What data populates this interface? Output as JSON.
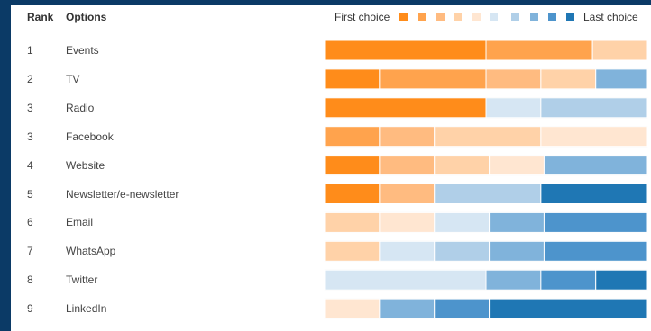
{
  "headers": {
    "rank": "Rank",
    "options": "Options"
  },
  "legend": {
    "first": "First choice",
    "last": "Last choice",
    "colors": [
      "#ff8c1a",
      "#ffa34d",
      "#ffbb80",
      "#ffd2a8",
      "#ffe6d1",
      "#d6e6f3",
      "#b0cfe8",
      "#80b3db",
      "#4d94cc",
      "#1f77b4"
    ]
  },
  "chart_data": {
    "type": "bar",
    "stacked": true,
    "normalized": true,
    "categories": [
      "Events",
      "TV",
      "Radio",
      "Facebook",
      "Website",
      "Newsletter/e-newsletter",
      "Email",
      "WhatsApp",
      "Twitter",
      "LinkedIn"
    ],
    "ranks": [
      "1",
      "2",
      "3",
      "3",
      "4",
      "5",
      "6",
      "7",
      "8",
      "9"
    ],
    "xlim": [
      0,
      1
    ],
    "rows": [
      [
        {
          "rank": 1,
          "value": 0.5
        },
        {
          "rank": 2,
          "value": 0.33
        },
        {
          "rank": 4,
          "value": 0.17
        }
      ],
      [
        {
          "rank": 1,
          "value": 0.17
        },
        {
          "rank": 2,
          "value": 0.33
        },
        {
          "rank": 3,
          "value": 0.17
        },
        {
          "rank": 4,
          "value": 0.17
        },
        {
          "rank": 8,
          "value": 0.16
        }
      ],
      [
        {
          "rank": 1,
          "value": 0.5
        },
        {
          "rank": 6,
          "value": 0.17
        },
        {
          "rank": 7,
          "value": 0.33
        }
      ],
      [
        {
          "rank": 2,
          "value": 0.17
        },
        {
          "rank": 3,
          "value": 0.17
        },
        {
          "rank": 4,
          "value": 0.33
        },
        {
          "rank": 5,
          "value": 0.33
        }
      ],
      [
        {
          "rank": 1,
          "value": 0.17
        },
        {
          "rank": 3,
          "value": 0.17
        },
        {
          "rank": 4,
          "value": 0.17
        },
        {
          "rank": 5,
          "value": 0.17
        },
        {
          "rank": 8,
          "value": 0.32
        }
      ],
      [
        {
          "rank": 1,
          "value": 0.17
        },
        {
          "rank": 3,
          "value": 0.17
        },
        {
          "rank": 7,
          "value": 0.33
        },
        {
          "rank": 10,
          "value": 0.33
        }
      ],
      [
        {
          "rank": 4,
          "value": 0.17
        },
        {
          "rank": 5,
          "value": 0.17
        },
        {
          "rank": 6,
          "value": 0.17
        },
        {
          "rank": 8,
          "value": 0.17
        },
        {
          "rank": 9,
          "value": 0.32
        }
      ],
      [
        {
          "rank": 4,
          "value": 0.17
        },
        {
          "rank": 6,
          "value": 0.17
        },
        {
          "rank": 7,
          "value": 0.17
        },
        {
          "rank": 8,
          "value": 0.17
        },
        {
          "rank": 9,
          "value": 0.32
        }
      ],
      [
        {
          "rank": 6,
          "value": 0.5
        },
        {
          "rank": 8,
          "value": 0.17
        },
        {
          "rank": 9,
          "value": 0.17
        },
        {
          "rank": 10,
          "value": 0.16
        }
      ],
      [
        {
          "rank": 5,
          "value": 0.17
        },
        {
          "rank": 8,
          "value": 0.17
        },
        {
          "rank": 9,
          "value": 0.17
        },
        {
          "rank": 10,
          "value": 0.49
        }
      ]
    ]
  }
}
